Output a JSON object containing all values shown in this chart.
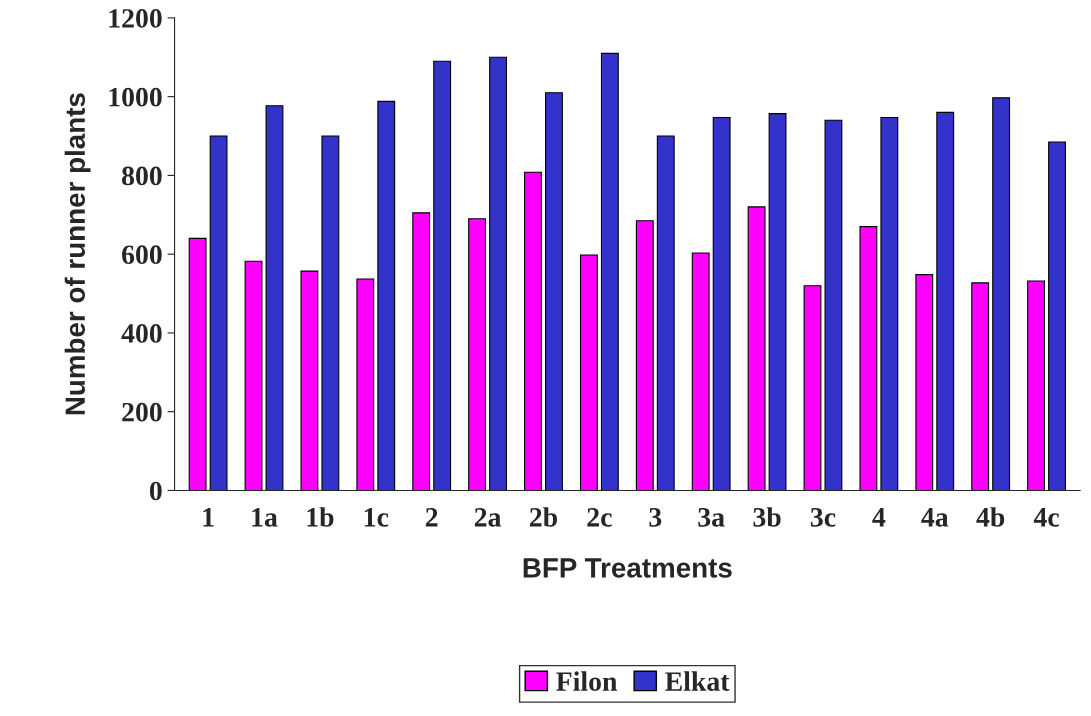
{
  "chart_data": {
    "type": "bar",
    "xlabel": "BFP Treatments",
    "ylabel": "Number of runner plants",
    "categories": [
      "1",
      "1a",
      "1b",
      "1c",
      "2",
      "2a",
      "2b",
      "2c",
      "3",
      "3a",
      "3b",
      "3c",
      "4",
      "4a",
      "4b",
      "4c"
    ],
    "series": [
      {
        "name": "Filon",
        "color": "#ff00ff",
        "values": [
          640,
          582,
          557,
          537,
          705,
          690,
          808,
          598,
          685,
          603,
          720,
          520,
          670,
          548,
          527,
          532
        ]
      },
      {
        "name": "Elkat",
        "color": "#3333cc",
        "values": [
          900,
          977,
          900,
          988,
          1090,
          1100,
          1010,
          1110,
          900,
          947,
          957,
          940,
          947,
          960,
          997,
          885
        ]
      }
    ],
    "ylim": [
      0,
      1200
    ],
    "yticks": [
      0,
      200,
      400,
      600,
      800,
      1000,
      1200
    ],
    "grid": false,
    "legend": "bottom"
  }
}
